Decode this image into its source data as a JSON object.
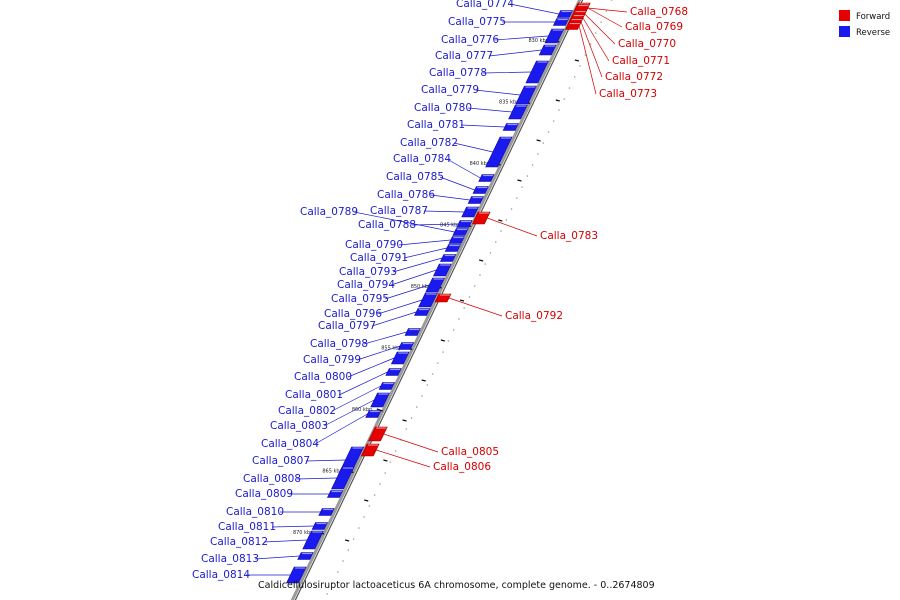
{
  "title": "Caldicellulosiruptor lactoaceticus 6A chromosome, complete genome. - 0..2674809",
  "colors": {
    "forward": "#e60000",
    "reverse": "#1a1aee",
    "backbone": "#9a9a9a",
    "fwd_label": "#d40000",
    "rev_label": "#1a1acc"
  },
  "legend": [
    {
      "label": "Forward",
      "color": "#e60000"
    },
    {
      "label": "Reverse",
      "color": "#1a1aee"
    }
  ],
  "ticks": [
    {
      "kbp": 830,
      "label": "830 kbp"
    },
    {
      "kbp": 835,
      "label": "835 kbp"
    },
    {
      "kbp": 840,
      "label": "840 kbp"
    },
    {
      "kbp": 845,
      "label": "845 kbp"
    },
    {
      "kbp": 850,
      "label": "850 kbp"
    },
    {
      "kbp": 855,
      "label": "855 kbp"
    },
    {
      "kbp": 860,
      "label": "860 kbp"
    },
    {
      "kbp": 865,
      "label": "865 kbp"
    },
    {
      "kbp": 870,
      "label": "870 kbp"
    }
  ],
  "genes": [
    {
      "id": "Calla_0768",
      "strand": "forward"
    },
    {
      "id": "Calla_0769",
      "strand": "forward"
    },
    {
      "id": "Calla_0770",
      "strand": "forward"
    },
    {
      "id": "Calla_0771",
      "strand": "forward"
    },
    {
      "id": "Calla_0772",
      "strand": "forward"
    },
    {
      "id": "Calla_0773",
      "strand": "forward"
    },
    {
      "id": "Calla_0774",
      "strand": "reverse"
    },
    {
      "id": "Calla_0775",
      "strand": "reverse"
    },
    {
      "id": "Calla_0776",
      "strand": "reverse"
    },
    {
      "id": "Calla_0777",
      "strand": "reverse"
    },
    {
      "id": "Calla_0778",
      "strand": "reverse"
    },
    {
      "id": "Calla_0779",
      "strand": "reverse"
    },
    {
      "id": "Calla_0780",
      "strand": "reverse"
    },
    {
      "id": "Calla_0781",
      "strand": "reverse"
    },
    {
      "id": "Calla_0782",
      "strand": "reverse"
    },
    {
      "id": "Calla_0783",
      "strand": "forward"
    },
    {
      "id": "Calla_0784",
      "strand": "reverse"
    },
    {
      "id": "Calla_0785",
      "strand": "reverse"
    },
    {
      "id": "Calla_0786",
      "strand": "reverse"
    },
    {
      "id": "Calla_0787",
      "strand": "reverse"
    },
    {
      "id": "Calla_0788",
      "strand": "reverse"
    },
    {
      "id": "Calla_0789",
      "strand": "reverse"
    },
    {
      "id": "Calla_0790",
      "strand": "reverse"
    },
    {
      "id": "Calla_0791",
      "strand": "reverse"
    },
    {
      "id": "Calla_0792",
      "strand": "forward"
    },
    {
      "id": "Calla_0793",
      "strand": "reverse"
    },
    {
      "id": "Calla_0794",
      "strand": "reverse"
    },
    {
      "id": "Calla_0795",
      "strand": "reverse"
    },
    {
      "id": "Calla_0796",
      "strand": "reverse"
    },
    {
      "id": "Calla_0797",
      "strand": "reverse"
    },
    {
      "id": "Calla_0798",
      "strand": "reverse"
    },
    {
      "id": "Calla_0799",
      "strand": "reverse"
    },
    {
      "id": "Calla_0800",
      "strand": "reverse"
    },
    {
      "id": "Calla_0801",
      "strand": "reverse"
    },
    {
      "id": "Calla_0802",
      "strand": "reverse"
    },
    {
      "id": "Calla_0803",
      "strand": "reverse"
    },
    {
      "id": "Calla_0804",
      "strand": "reverse"
    },
    {
      "id": "Calla_0805",
      "strand": "forward"
    },
    {
      "id": "Calla_0806",
      "strand": "forward"
    },
    {
      "id": "Calla_0807",
      "strand": "reverse"
    },
    {
      "id": "Calla_0808",
      "strand": "reverse"
    },
    {
      "id": "Calla_0809",
      "strand": "reverse"
    },
    {
      "id": "Calla_0810",
      "strand": "reverse"
    },
    {
      "id": "Calla_0811",
      "strand": "reverse"
    },
    {
      "id": "Calla_0812",
      "strand": "reverse"
    },
    {
      "id": "Calla_0813",
      "strand": "reverse"
    },
    {
      "id": "Calla_0814",
      "strand": "reverse"
    }
  ]
}
